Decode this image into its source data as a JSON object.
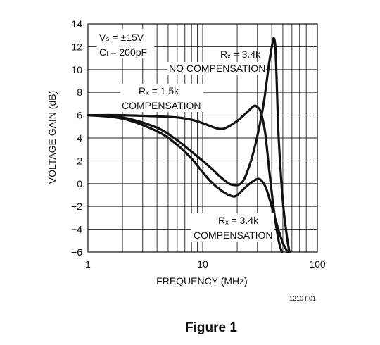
{
  "chart_data": {
    "type": "line",
    "title": "",
    "xlabel": "FREQUENCY (MHz)",
    "ylabel": "VOLTAGE GAIN (dB)",
    "xscale": "log",
    "xlim": [
      1,
      100
    ],
    "ylim": [
      -6,
      14
    ],
    "x_ticks": [
      "1",
      "10",
      "100"
    ],
    "y_ticks": [
      "14",
      "12",
      "10",
      "8",
      "6",
      "4",
      "2",
      "0",
      "−2",
      "−4",
      "−6"
    ],
    "grid": true,
    "conditions": {
      "vs": "Vₛ = ±15V",
      "cl": "Cₗ = 200pF"
    },
    "series": [
      {
        "name": "Rₓ = 3.4k NO COMPENSATION",
        "x": [
          1,
          2,
          4,
          6,
          8,
          10,
          12,
          15,
          18,
          22,
          26,
          30,
          34,
          38,
          41,
          42,
          43,
          44,
          46,
          50,
          54,
          57
        ],
        "y": [
          6.0,
          5.8,
          4.9,
          3.8,
          2.8,
          2.0,
          1.3,
          0.4,
          -0.1,
          0.1,
          1.8,
          4.2,
          7.0,
          10.6,
          12.5,
          12.7,
          12.0,
          9.5,
          4.0,
          -1.5,
          -4.5,
          -6.0
        ]
      },
      {
        "name": "Rₓ = 1.5k COMPENSATION",
        "x": [
          1,
          2,
          4,
          6,
          8,
          10,
          12,
          14,
          16,
          20,
          24,
          28,
          30,
          32,
          35,
          38,
          42,
          46,
          49
        ],
        "y": [
          6.0,
          6.0,
          5.9,
          5.8,
          5.6,
          5.3,
          5.0,
          4.8,
          4.9,
          5.5,
          6.2,
          6.8,
          6.7,
          6.3,
          4.5,
          1.2,
          -2.5,
          -5.0,
          -6.0
        ]
      },
      {
        "name": "Rₓ = 3.4k COMPENSATION",
        "x": [
          1,
          2,
          4,
          6,
          8,
          10,
          12,
          15,
          18,
          20,
          25,
          30,
          33,
          36,
          40,
          45,
          50,
          55
        ],
        "y": [
          6.0,
          5.7,
          4.6,
          3.4,
          2.2,
          1.0,
          0.1,
          -0.7,
          -1.1,
          -1.0,
          -0.1,
          0.4,
          0.2,
          -0.5,
          -2.0,
          -3.8,
          -5.2,
          -6.0
        ]
      }
    ],
    "annotations": {
      "label_34k_nocomp_line1": "Rₓ = 3.4k",
      "label_34k_nocomp_line2": "NO COMPENSATION",
      "label_15k_comp_line1": "Rₓ = 1.5k",
      "label_15k_comp_line2": "COMPENSATION",
      "label_34k_comp_line1": "Rₓ = 3.4k",
      "label_34k_comp_line2": "COMPENSATION"
    }
  },
  "figure_code": "1210 F01",
  "caption": "Figure 1"
}
